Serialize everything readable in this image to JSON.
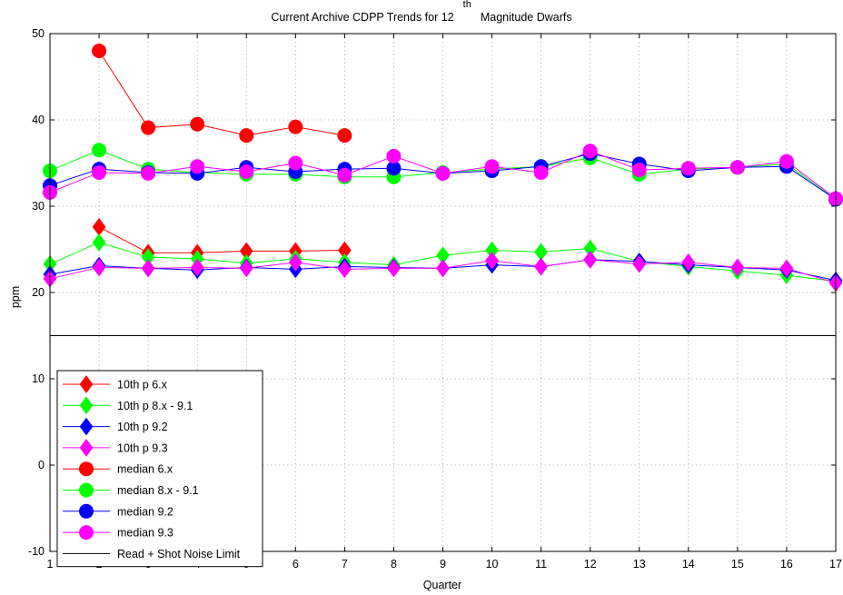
{
  "chart_data": {
    "type": "line",
    "title": {
      "prefix": "Current Archive CDPP Trends for 12",
      "superscript": "th",
      "suffix": "Magnitude Dwarfs"
    },
    "xlabel": "Quarter",
    "ylabel": "ppm",
    "xlim": [
      1,
      17
    ],
    "ylim": [
      -10,
      50
    ],
    "x_ticks": [
      1,
      2,
      3,
      4,
      5,
      6,
      7,
      8,
      9,
      10,
      11,
      12,
      13,
      14,
      15,
      16,
      17
    ],
    "y_ticks": [
      -10,
      0,
      10,
      20,
      30,
      40,
      50
    ],
    "grid": true,
    "legend_position": "lower-left",
    "reference_line": {
      "y": 15,
      "name": "Read + Shot Noise Limit",
      "color": "#000000"
    },
    "series": [
      {
        "name": "10th p 6.x",
        "marker": "diamond",
        "color": "#ff0000",
        "x": [
          2,
          3,
          4,
          5,
          6,
          7
        ],
        "y": [
          27.6,
          24.6,
          24.6,
          24.8,
          24.8,
          24.9
        ]
      },
      {
        "name": "10th p 8.x - 9.1",
        "marker": "diamond",
        "color": "#00ff00",
        "x": [
          1,
          2,
          3,
          4,
          5,
          6,
          7,
          8,
          9,
          10,
          11,
          12,
          13,
          14,
          15,
          16,
          17
        ],
        "y": [
          23.3,
          25.8,
          24.1,
          23.9,
          23.4,
          23.9,
          23.5,
          23.2,
          24.3,
          24.9,
          24.7,
          25.1,
          23.6,
          23.0,
          22.5,
          22.0,
          21.3
        ]
      },
      {
        "name": "10th p 9.2",
        "marker": "diamond",
        "color": "#0000ff",
        "x": [
          1,
          2,
          3,
          4,
          5,
          6,
          7,
          8,
          9,
          10,
          11,
          12,
          13,
          14,
          15,
          16,
          17
        ],
        "y": [
          22.1,
          23.1,
          22.8,
          22.6,
          22.9,
          22.7,
          23.0,
          22.9,
          22.8,
          23.2,
          23.0,
          23.8,
          23.6,
          23.2,
          22.9,
          22.6,
          21.4
        ]
      },
      {
        "name": "10th p 9.3",
        "marker": "diamond",
        "color": "#ff00ff",
        "x": [
          1,
          2,
          3,
          4,
          5,
          6,
          7,
          8,
          9,
          10,
          11,
          12,
          13,
          14,
          15,
          16,
          17
        ],
        "y": [
          21.6,
          22.9,
          22.8,
          22.9,
          22.8,
          23.5,
          22.7,
          22.8,
          22.8,
          23.7,
          23.0,
          23.8,
          23.3,
          23.5,
          22.9,
          22.8,
          21.1
        ]
      },
      {
        "name": "median 6.x",
        "marker": "circle",
        "color": "#ff0000",
        "x": [
          2,
          3,
          4,
          5,
          6,
          7
        ],
        "y": [
          48.0,
          39.1,
          39.5,
          38.2,
          39.2,
          38.2
        ]
      },
      {
        "name": "median 8.x - 9.1",
        "marker": "circle",
        "color": "#00ff00",
        "x": [
          1,
          2,
          3,
          4,
          5,
          6,
          7,
          8,
          9,
          10,
          11,
          12,
          13,
          14,
          15,
          16,
          17
        ],
        "y": [
          34.1,
          36.5,
          34.3,
          33.9,
          33.7,
          33.7,
          33.4,
          33.4,
          33.9,
          34.3,
          34.6,
          35.6,
          33.7,
          34.3,
          34.5,
          34.9,
          30.8
        ]
      },
      {
        "name": "median 9.2",
        "marker": "circle",
        "color": "#0000ff",
        "x": [
          1,
          2,
          3,
          4,
          5,
          6,
          7,
          8,
          9,
          10,
          11,
          12,
          13,
          14,
          15,
          16,
          17
        ],
        "y": [
          32.4,
          34.3,
          33.9,
          33.8,
          34.5,
          34.0,
          34.3,
          34.4,
          33.8,
          34.1,
          34.6,
          36.1,
          34.9,
          34.1,
          34.5,
          34.6,
          30.8
        ]
      },
      {
        "name": "median 9.3",
        "marker": "circle",
        "color": "#ff00ff",
        "x": [
          1,
          2,
          3,
          4,
          5,
          6,
          7,
          8,
          9,
          10,
          11,
          12,
          13,
          14,
          15,
          16,
          17
        ],
        "y": [
          31.6,
          33.9,
          33.8,
          34.6,
          34.0,
          35.0,
          33.6,
          35.8,
          33.8,
          34.6,
          33.9,
          36.4,
          34.2,
          34.4,
          34.5,
          35.2,
          30.9
        ]
      }
    ]
  }
}
